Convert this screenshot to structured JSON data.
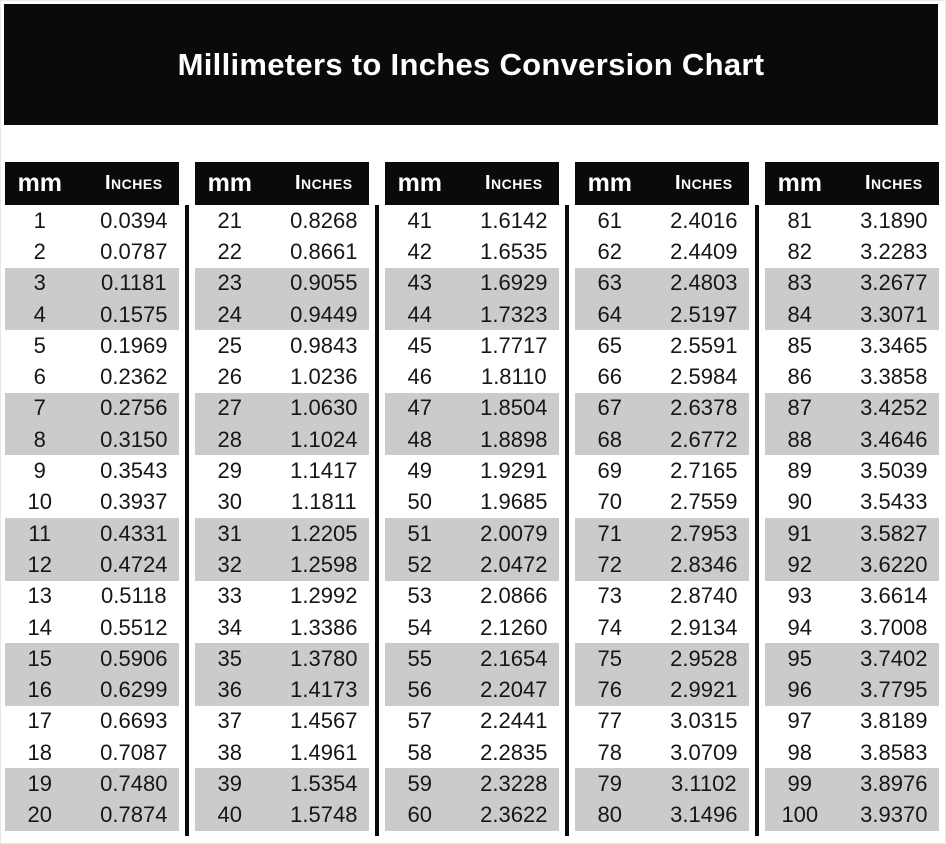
{
  "title": "Millimeters to Inches Conversion Chart",
  "colors": {
    "banner_bg": "#0a0a0a",
    "header_bg": "#0a0a0a",
    "divider": "#0a0a0a",
    "row_bg": "#ffffff",
    "row_alt_bg": "#cbcbcb",
    "title_text": "#ffffff",
    "header_text": "#ffffff",
    "body_text": "#161616"
  },
  "chart_data": {
    "type": "table",
    "title": "Millimeters to Inches Conversion Chart",
    "column_headers": [
      "mm",
      "Inches"
    ],
    "layout": {
      "column_groups": 5,
      "rows_per_group": 20,
      "row_banding": "two white rows alternating with two gray rows",
      "dividers": "vertical black rule between column groups, starting below header"
    },
    "columns": [
      {
        "mm": [
          1,
          2,
          3,
          4,
          5,
          6,
          7,
          8,
          9,
          10,
          11,
          12,
          13,
          14,
          15,
          16,
          17,
          18,
          19,
          20
        ],
        "inches": [
          "0.0394",
          "0.0787",
          "0.1181",
          "0.1575",
          "0.1969",
          "0.2362",
          "0.2756",
          "0.3150",
          "0.3543",
          "0.3937",
          "0.4331",
          "0.4724",
          "0.5118",
          "0.5512",
          "0.5906",
          "0.6299",
          "0.6693",
          "0.7087",
          "0.7480",
          "0.7874"
        ]
      },
      {
        "mm": [
          21,
          22,
          23,
          24,
          25,
          26,
          27,
          28,
          29,
          30,
          31,
          32,
          33,
          34,
          35,
          36,
          37,
          38,
          39,
          40
        ],
        "inches": [
          "0.8268",
          "0.8661",
          "0.9055",
          "0.9449",
          "0.9843",
          "1.0236",
          "1.0630",
          "1.1024",
          "1.1417",
          "1.1811",
          "1.2205",
          "1.2598",
          "1.2992",
          "1.3386",
          "1.3780",
          "1.4173",
          "1.4567",
          "1.4961",
          "1.5354",
          "1.5748"
        ]
      },
      {
        "mm": [
          41,
          42,
          43,
          44,
          45,
          46,
          47,
          48,
          49,
          50,
          51,
          52,
          53,
          54,
          55,
          56,
          57,
          58,
          59,
          60
        ],
        "inches": [
          "1.6142",
          "1.6535",
          "1.6929",
          "1.7323",
          "1.7717",
          "1.8110",
          "1.8504",
          "1.8898",
          "1.9291",
          "1.9685",
          "2.0079",
          "2.0472",
          "2.0866",
          "2.1260",
          "2.1654",
          "2.2047",
          "2.2441",
          "2.2835",
          "2.3228",
          "2.3622"
        ]
      },
      {
        "mm": [
          61,
          62,
          63,
          64,
          65,
          66,
          67,
          68,
          69,
          70,
          71,
          72,
          73,
          74,
          75,
          76,
          77,
          78,
          79,
          80
        ],
        "inches": [
          "2.4016",
          "2.4409",
          "2.4803",
          "2.5197",
          "2.5591",
          "2.5984",
          "2.6378",
          "2.6772",
          "2.7165",
          "2.7559",
          "2.7953",
          "2.8346",
          "2.8740",
          "2.9134",
          "2.9528",
          "2.9921",
          "3.0315",
          "3.0709",
          "3.1102",
          "3.1496"
        ]
      },
      {
        "mm": [
          81,
          82,
          83,
          84,
          85,
          86,
          87,
          88,
          89,
          90,
          91,
          92,
          93,
          94,
          95,
          96,
          97,
          98,
          99,
          100
        ],
        "inches": [
          "3.1890",
          "3.2283",
          "3.2677",
          "3.3071",
          "3.3465",
          "3.3858",
          "3.4252",
          "3.4646",
          "3.5039",
          "3.5433",
          "3.5827",
          "3.6220",
          "3.6614",
          "3.7008",
          "3.7402",
          "3.7795",
          "3.8189",
          "3.8583",
          "3.8976",
          "3.9370"
        ]
      }
    ]
  }
}
